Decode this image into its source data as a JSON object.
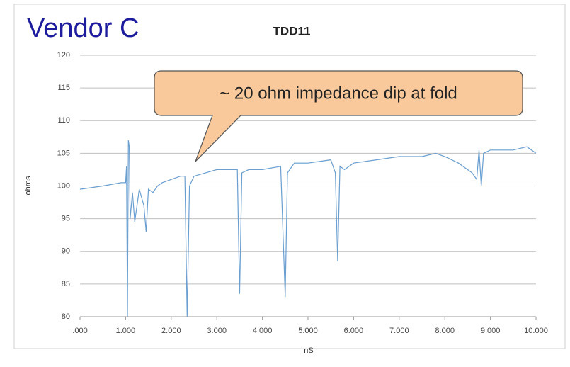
{
  "chart_data": {
    "type": "line",
    "title": "TDD11",
    "overlay_title": "Vendor C",
    "annotation": "~ 20 ohm impedance dip at fold",
    "xlabel": "nS",
    "ylabel": "ohms",
    "color": "#6a9fd0",
    "grid": true,
    "x": [
      0,
      0.5,
      0.9,
      1.0,
      1.02,
      1.04,
      1.06,
      1.08,
      1.1,
      1.15,
      1.2,
      1.3,
      1.4,
      1.45,
      1.5,
      1.6,
      1.7,
      1.8,
      2.0,
      2.2,
      2.3,
      2.35,
      2.4,
      2.5,
      3.0,
      3.2,
      3.45,
      3.5,
      3.55,
      3.7,
      4.0,
      4.4,
      4.5,
      4.55,
      4.7,
      5.0,
      5.5,
      5.6,
      5.65,
      5.7,
      5.8,
      6.0,
      6.5,
      7.0,
      7.5,
      7.8,
      8.0,
      8.3,
      8.6,
      8.7,
      8.75,
      8.8,
      8.85,
      9.0,
      9.5,
      9.8,
      10.0
    ],
    "values": [
      99.5,
      100,
      100.5,
      100.5,
      103,
      80,
      107,
      106,
      95,
      99,
      94.5,
      99.5,
      97,
      93,
      99.5,
      99,
      100,
      100.5,
      101,
      101.5,
      101.5,
      80,
      100,
      101.5,
      102.5,
      102.5,
      102.5,
      83.5,
      102,
      102.5,
      102.5,
      103,
      83,
      102,
      103.5,
      103.5,
      104,
      102,
      88.5,
      103,
      102.5,
      103.5,
      104,
      104.5,
      104.5,
      105,
      104.5,
      103.5,
      102,
      101,
      105.5,
      100,
      105,
      105.5,
      105.5,
      106,
      105
    ],
    "xlim": [
      0,
      10
    ],
    "ylim": [
      80,
      120
    ],
    "xticks": [
      {
        "value": 0,
        "label": ".000"
      },
      {
        "value": 1,
        "label": "1.000"
      },
      {
        "value": 2,
        "label": "2.000"
      },
      {
        "value": 3,
        "label": "3.000"
      },
      {
        "value": 4,
        "label": "4.000"
      },
      {
        "value": 5,
        "label": "5.000"
      },
      {
        "value": 6,
        "label": "6.000"
      },
      {
        "value": 7,
        "label": "7.000"
      },
      {
        "value": 8,
        "label": "8.000"
      },
      {
        "value": 9,
        "label": "9.000"
      },
      {
        "value": 10,
        "label": "10.000"
      }
    ],
    "yticks": [
      80,
      85,
      90,
      95,
      100,
      105,
      110,
      115,
      120
    ]
  }
}
